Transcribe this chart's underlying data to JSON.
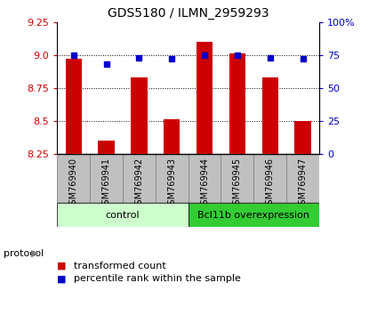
{
  "title": "GDS5180 / ILMN_2959293",
  "samples": [
    "GSM769940",
    "GSM769941",
    "GSM769942",
    "GSM769943",
    "GSM769944",
    "GSM769945",
    "GSM769946",
    "GSM769947"
  ],
  "transformed_counts": [
    8.97,
    8.35,
    8.83,
    8.51,
    9.1,
    9.01,
    8.83,
    8.5
  ],
  "percentile_ranks": [
    75,
    68,
    73,
    72,
    75,
    75,
    73,
    72
  ],
  "ylim_left": [
    8.25,
    9.25
  ],
  "ylim_right": [
    0,
    100
  ],
  "yticks_left": [
    8.25,
    8.5,
    8.75,
    9.0,
    9.25
  ],
  "yticks_right": [
    0,
    25,
    50,
    75,
    100
  ],
  "ytick_labels_right": [
    "0",
    "25",
    "50",
    "75",
    "100%"
  ],
  "bar_color": "#cc0000",
  "dot_color": "#0000cc",
  "grid_color": "#000000",
  "bg_color": "#ffffff",
  "sample_bg": "#c0c0c0",
  "sample_border": "#808080",
  "control_bg": "#ccffcc",
  "overexp_bg": "#33cc33",
  "control_label": "control",
  "overexp_label": "Bcl11b overexpression",
  "protocol_label": "protocol",
  "legend_bar": "transformed count",
  "legend_dot": "percentile rank within the sample",
  "n_control": 4,
  "n_overexp": 4,
  "left_tick_color": "#cc0000",
  "right_tick_color": "#0000cc",
  "title_fontsize": 10,
  "tick_fontsize": 8,
  "sample_fontsize": 7,
  "protocol_fontsize": 8,
  "legend_fontsize": 8
}
